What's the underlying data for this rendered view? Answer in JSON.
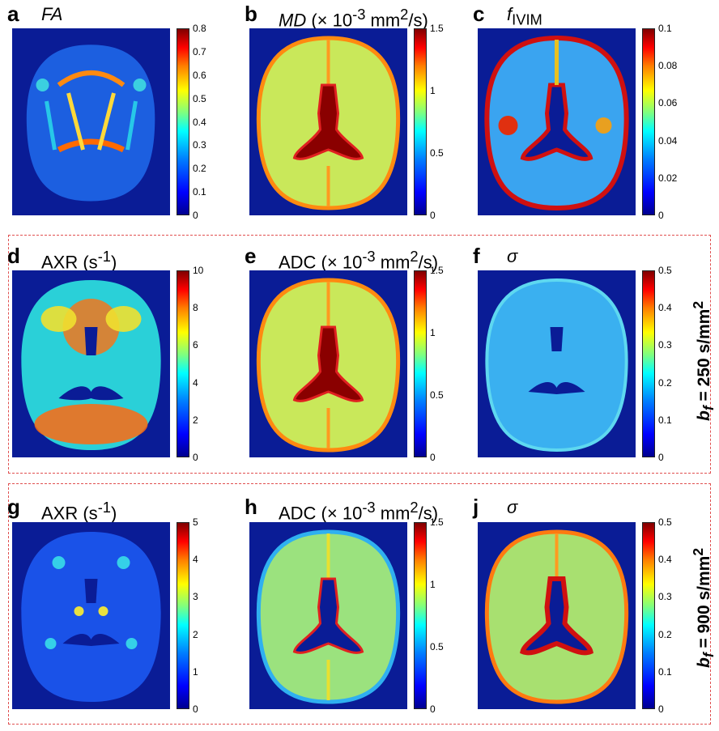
{
  "panels": [
    {
      "letter": "a",
      "title_html": "<i>FA</i>",
      "ticks": [
        "0.8",
        "0.7",
        "0.6",
        "0.5",
        "0.4",
        "0.3",
        "0.2",
        "0.1",
        "0"
      ],
      "map": "fa"
    },
    {
      "letter": "b",
      "title_html": "<i>MD</i> (× 10<sup>-3</sup> mm<sup>2</sup>/s)",
      "ticks": [
        "1.5",
        "1",
        "0.5",
        "0"
      ],
      "map": "md"
    },
    {
      "letter": "c",
      "title_html": "<i>f</i><sub>IVIM</sub>",
      "ticks": [
        "0.1",
        "0.08",
        "0.06",
        "0.04",
        "0.02",
        "0"
      ],
      "map": "fivim"
    },
    {
      "letter": "d",
      "title_html": "AXR (s<sup>-1</sup>)",
      "ticks": [
        "10",
        "8",
        "6",
        "4",
        "2",
        "0"
      ],
      "map": "axr1"
    },
    {
      "letter": "e",
      "title_html": "ADC (× 10<sup>-3</sup> mm<sup>2</sup>/s)",
      "ticks": [
        "1.5",
        "1",
        "0.5",
        "0"
      ],
      "map": "md"
    },
    {
      "letter": "f",
      "title_html": "<i>σ</i>",
      "ticks": [
        "0.5",
        "0.4",
        "0.3",
        "0.2",
        "0.1",
        "0"
      ],
      "map": "sigma1"
    },
    {
      "letter": "g",
      "title_html": "AXR (s<sup>-1</sup>)",
      "ticks": [
        "5",
        "4",
        "3",
        "2",
        "1",
        "0"
      ],
      "map": "axr2"
    },
    {
      "letter": "h",
      "title_html": "ADC (× 10<sup>-3</sup> mm<sup>2</sup>/s)",
      "ticks": [
        "1.5",
        "1",
        "0.5",
        "0"
      ],
      "map": "adc2"
    },
    {
      "letter": "j",
      "title_html": "<i>σ</i>",
      "ticks": [
        "0.5",
        "0.4",
        "0.3",
        "0.2",
        "0.1",
        "0"
      ],
      "map": "sigma2"
    }
  ],
  "row_labels": [
    "<i>b<sub>f</sub></i> = 250 s/mm<sup>2</sup>",
    "<i>b<sub>f</sub></i> = 900 s/mm<sup>2</sup>"
  ]
}
